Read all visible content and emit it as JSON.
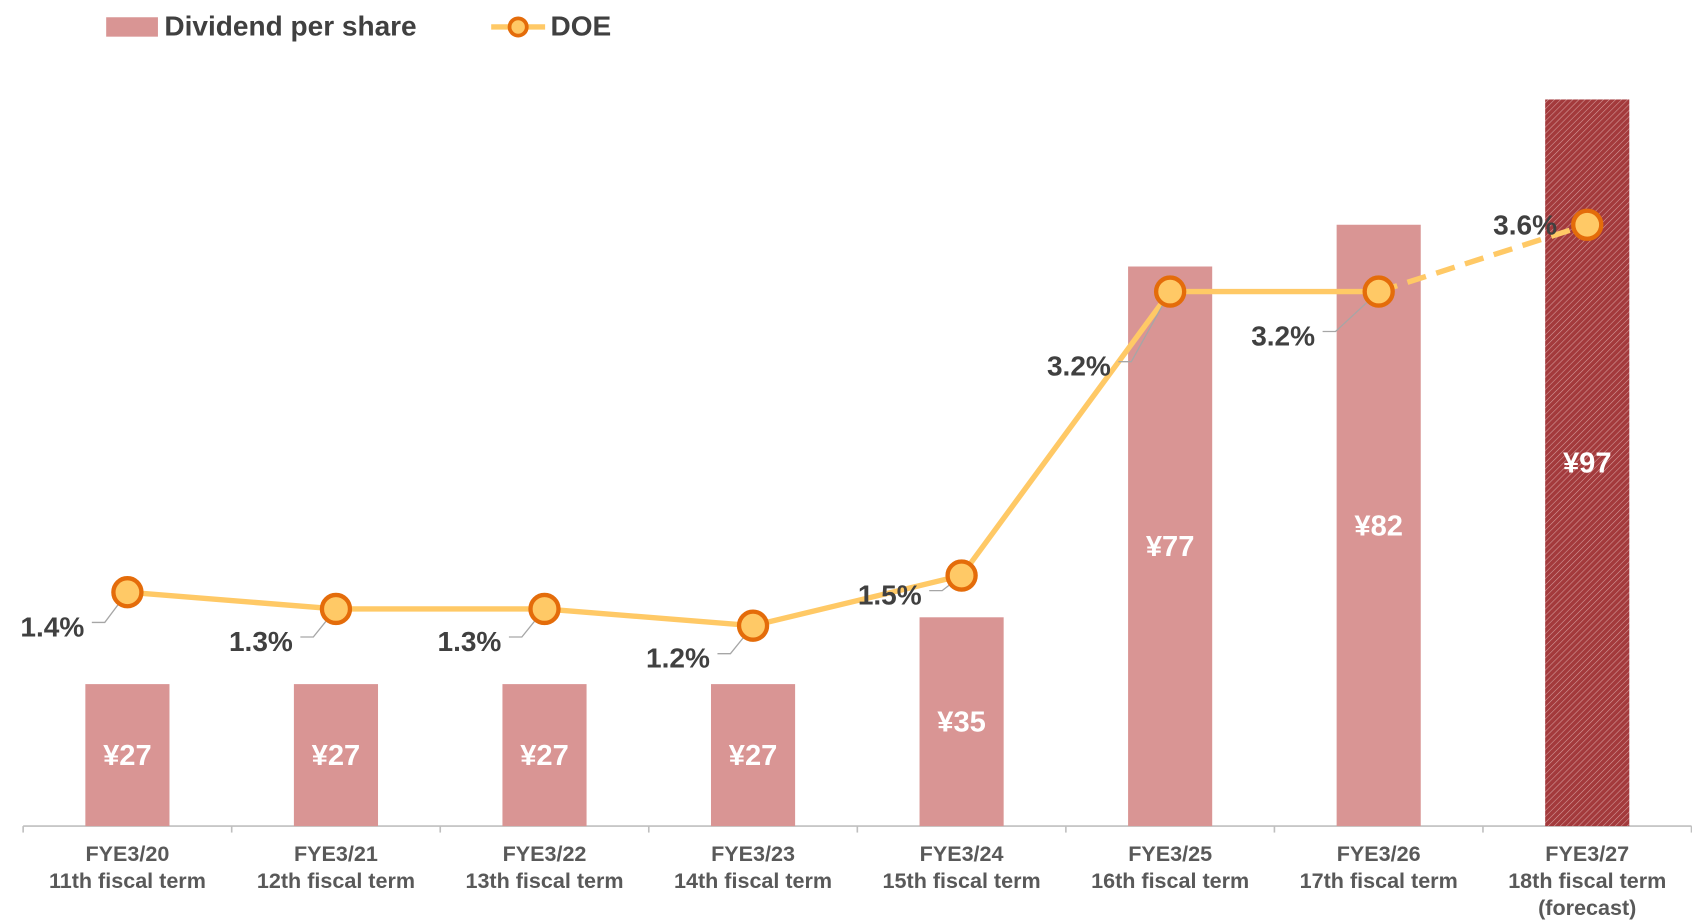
{
  "chart_data": {
    "type": "bar-line",
    "categories": [
      [
        "FYE3/20",
        "11th fiscal term"
      ],
      [
        "FYE3/21",
        "12th fiscal term"
      ],
      [
        "FYE3/22",
        "13th fiscal term"
      ],
      [
        "FYE3/23",
        "14th fiscal term"
      ],
      [
        "FYE3/24",
        "15th fiscal term"
      ],
      [
        "FYE3/25",
        "16th fiscal term"
      ],
      [
        "FYE3/26",
        "17th fiscal term"
      ],
      [
        "FYE3/27",
        "18th fiscal term",
        "(forecast)"
      ]
    ],
    "series": [
      {
        "name": "Dividend per share",
        "type": "bar",
        "color": "#d99594",
        "forecast_color": "#a33a3c",
        "values": [
          27,
          27,
          27,
          27,
          35,
          77,
          82,
          97
        ],
        "value_labels": [
          "¥27",
          "¥27",
          "¥27",
          "¥27",
          "¥35",
          "¥77",
          "¥82",
          "¥97"
        ]
      },
      {
        "name": "DOE",
        "type": "line",
        "axis": "y2",
        "color": "#ffc966",
        "marker_edge": "#e46c0a",
        "values": [
          1.4,
          1.3,
          1.3,
          1.2,
          1.5,
          3.2,
          3.2,
          3.6
        ],
        "value_labels": [
          "1.4%",
          "1.3%",
          "1.3%",
          "1.2%",
          "1.5%",
          "3.2%",
          "3.2%",
          "3.6%"
        ]
      }
    ],
    "forecast_index": 7,
    "ylim": [
      10,
      100
    ],
    "y2lim": [
      0,
      4.5
    ]
  }
}
